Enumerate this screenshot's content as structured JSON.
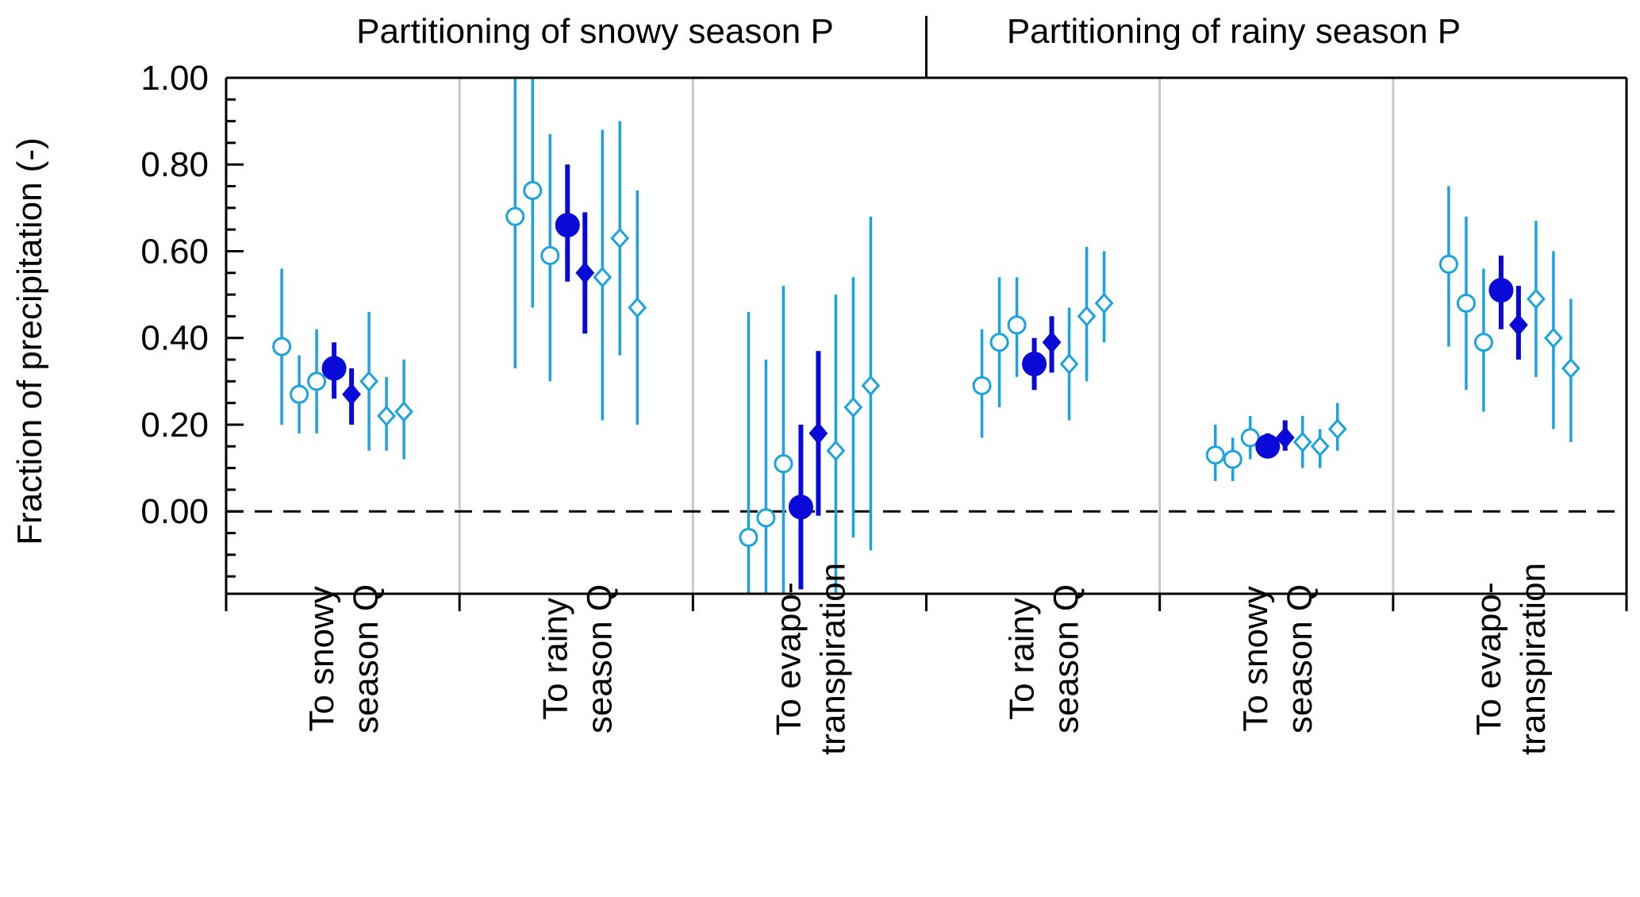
{
  "chart_data": {
    "type": "scatter",
    "panel_titles": [
      "Partitioning of snowy season P",
      "Partitioning of rainy season P"
    ],
    "ylabel": "Fraction of precipitation (-)",
    "ylim": [
      -0.19,
      1.0
    ],
    "yticks": [
      0.0,
      0.2,
      0.4,
      0.6,
      0.8,
      1.0
    ],
    "ytick_labels": [
      "0.00",
      "0.20",
      "0.40",
      "0.60",
      "0.80",
      "1.00"
    ],
    "reference_line": 0.0,
    "categories": [
      {
        "lines": [
          "To snowy",
          "season Q"
        ]
      },
      {
        "lines": [
          "To rainy",
          "season Q"
        ]
      },
      {
        "lines": [
          "To evapo-",
          "transpiration"
        ]
      },
      {
        "lines": [
          "To rainy",
          "season Q"
        ]
      },
      {
        "lines": [
          "To snowy",
          "season Q"
        ]
      },
      {
        "lines": [
          "To evapo-",
          "transpiration"
        ]
      }
    ],
    "series": [
      {
        "marker": "open-circle",
        "color": "#1aa3e0",
        "values": [
          0.38,
          0.68,
          -0.06,
          0.29,
          0.13,
          0.57
        ],
        "lower": [
          0.2,
          0.33,
          -0.19,
          0.17,
          0.07,
          0.38
        ],
        "upper": [
          0.56,
          1.0,
          0.46,
          0.42,
          0.2,
          0.75
        ]
      },
      {
        "marker": "open-circle",
        "color": "#1aa3e0",
        "values": [
          0.27,
          0.74,
          -0.015,
          0.39,
          0.12,
          0.48
        ],
        "lower": [
          0.18,
          0.47,
          -0.19,
          0.24,
          0.07,
          0.28
        ],
        "upper": [
          0.36,
          1.0,
          0.35,
          0.54,
          0.17,
          0.68
        ]
      },
      {
        "marker": "open-circle",
        "color": "#1aa3e0",
        "values": [
          0.3,
          0.59,
          0.11,
          0.43,
          0.17,
          0.39
        ],
        "lower": [
          0.18,
          0.3,
          -0.19,
          0.31,
          0.12,
          0.23
        ],
        "upper": [
          0.42,
          0.87,
          0.52,
          0.54,
          0.22,
          0.56
        ]
      },
      {
        "marker": "filled-circle",
        "color": "#0a0ad8",
        "values": [
          0.33,
          0.66,
          0.01,
          0.34,
          0.15,
          0.51
        ],
        "lower": [
          0.26,
          0.53,
          -0.18,
          0.28,
          0.13,
          0.42
        ],
        "upper": [
          0.39,
          0.8,
          0.2,
          0.4,
          0.18,
          0.59
        ]
      },
      {
        "marker": "filled-diamond",
        "color": "#0a0ad8",
        "values": [
          0.27,
          0.55,
          0.18,
          0.39,
          0.17,
          0.43
        ],
        "lower": [
          0.2,
          0.41,
          -0.01,
          0.32,
          0.14,
          0.35
        ],
        "upper": [
          0.33,
          0.69,
          0.37,
          0.45,
          0.21,
          0.52
        ]
      },
      {
        "marker": "open-diamond",
        "color": "#1aa3e0",
        "values": [
          0.3,
          0.54,
          0.14,
          0.34,
          0.16,
          0.49
        ],
        "lower": [
          0.14,
          0.21,
          -0.19,
          0.21,
          0.1,
          0.31
        ],
        "upper": [
          0.46,
          0.88,
          0.5,
          0.47,
          0.22,
          0.67
        ]
      },
      {
        "marker": "open-diamond",
        "color": "#1aa3e0",
        "values": [
          0.22,
          0.63,
          0.24,
          0.45,
          0.15,
          0.4
        ],
        "lower": [
          0.14,
          0.36,
          -0.06,
          0.3,
          0.1,
          0.19
        ],
        "upper": [
          0.31,
          0.9,
          0.54,
          0.61,
          0.19,
          0.6
        ]
      },
      {
        "marker": "open-diamond",
        "color": "#1aa3e0",
        "values": [
          0.23,
          0.47,
          0.29,
          0.48,
          0.19,
          0.33
        ],
        "lower": [
          0.12,
          0.2,
          -0.09,
          0.39,
          0.14,
          0.16
        ],
        "upper": [
          0.35,
          0.74,
          0.68,
          0.6,
          0.25,
          0.49
        ]
      }
    ]
  }
}
